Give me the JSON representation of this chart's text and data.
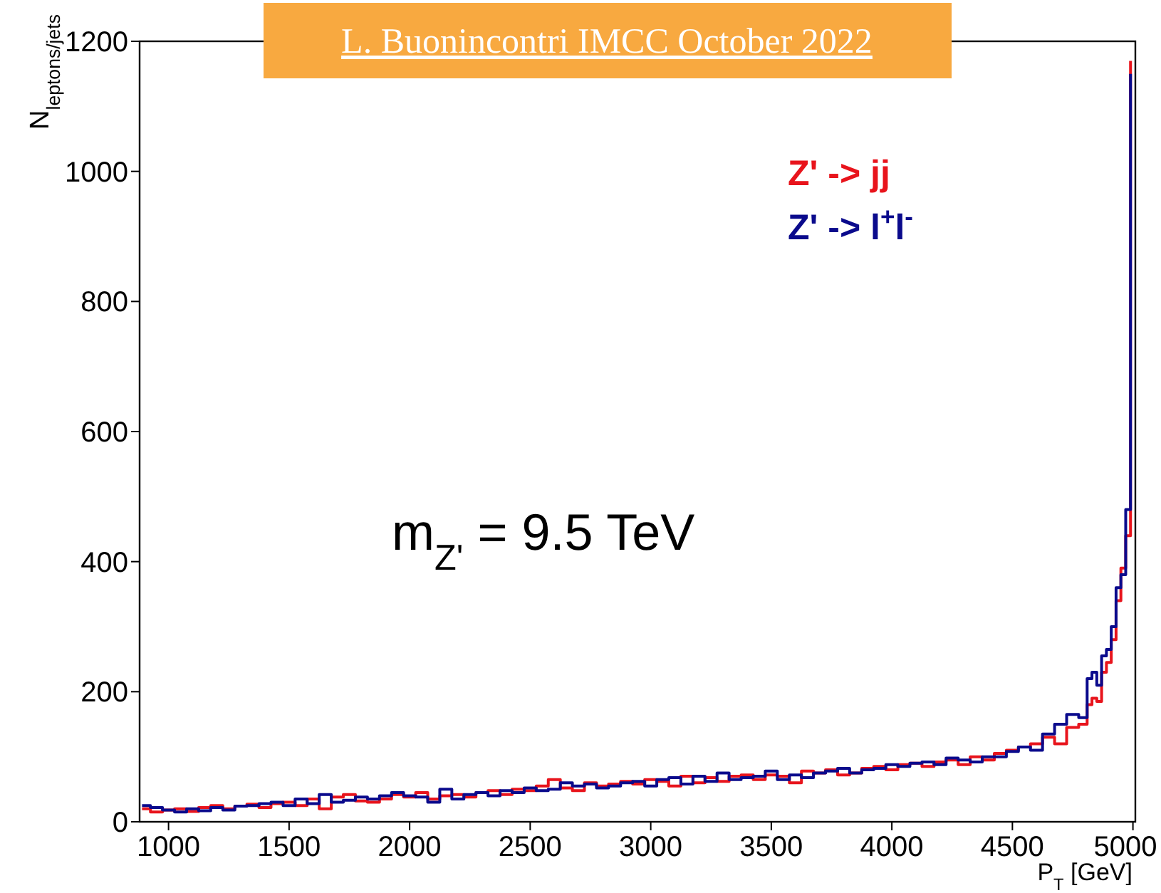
{
  "chart_data": {
    "type": "step",
    "title": "L. Buonincontri IMCC October 2022",
    "xlabel": "P$_{T}$ [GeV]",
    "ylabel": "N$_{leptons/jets}$",
    "annotations": [
      "m$_{Z'}$ = 9.5 TeV"
    ],
    "x": [
      890,
      925,
      975,
      1025,
      1075,
      1125,
      1175,
      1225,
      1275,
      1325,
      1375,
      1425,
      1475,
      1525,
      1575,
      1625,
      1675,
      1725,
      1775,
      1825,
      1875,
      1925,
      1975,
      2025,
      2075,
      2125,
      2175,
      2225,
      2275,
      2325,
      2375,
      2425,
      2475,
      2525,
      2575,
      2625,
      2675,
      2725,
      2775,
      2825,
      2875,
      2925,
      2975,
      3025,
      3075,
      3125,
      3175,
      3225,
      3275,
      3325,
      3375,
      3425,
      3475,
      3525,
      3575,
      3625,
      3675,
      3725,
      3775,
      3825,
      3875,
      3925,
      3975,
      4025,
      4075,
      4125,
      4175,
      4225,
      4275,
      4325,
      4375,
      4425,
      4475,
      4525,
      4575,
      4625,
      4675,
      4725,
      4775,
      4810,
      4830,
      4850,
      4870,
      4890,
      4910,
      4930,
      4950,
      4970,
      4990
    ],
    "series": [
      {
        "name": "Z' -> jj",
        "color": "#e8141c",
        "values": [
          20,
          15,
          18,
          20,
          16,
          22,
          25,
          20,
          24,
          27,
          22,
          28,
          30,
          25,
          35,
          20,
          38,
          42,
          32,
          30,
          35,
          42,
          38,
          45,
          35,
          40,
          42,
          38,
          45,
          48,
          42,
          50,
          48,
          55,
          65,
          52,
          48,
          60,
          55,
          58,
          62,
          58,
          65,
          62,
          55,
          70,
          60,
          68,
          62,
          70,
          72,
          65,
          72,
          70,
          60,
          78,
          75,
          80,
          72,
          75,
          82,
          85,
          80,
          88,
          90,
          85,
          92,
          95,
          88,
          100,
          95,
          105,
          110,
          115,
          120,
          130,
          120,
          145,
          150,
          180,
          190,
          185,
          230,
          245,
          280,
          340,
          390,
          440,
          1170
        ]
      },
      {
        "name": "Z' -> l$^{+}$l$^{-}$",
        "color": "#0a0a8c",
        "values": [
          25,
          22,
          18,
          15,
          20,
          17,
          22,
          18,
          24,
          25,
          28,
          30,
          25,
          35,
          28,
          42,
          30,
          33,
          38,
          35,
          40,
          45,
          40,
          38,
          30,
          50,
          35,
          42,
          45,
          40,
          48,
          45,
          52,
          48,
          50,
          60,
          55,
          58,
          52,
          55,
          60,
          62,
          55,
          65,
          68,
          58,
          70,
          62,
          75,
          65,
          68,
          70,
          78,
          65,
          72,
          68,
          75,
          78,
          82,
          75,
          80,
          82,
          88,
          85,
          90,
          92,
          88,
          98,
          95,
          92,
          100,
          100,
          108,
          115,
          110,
          135,
          150,
          165,
          160,
          220,
          230,
          210,
          255,
          265,
          300,
          360,
          380,
          480,
          1150
        ]
      }
    ],
    "xlim": [
      880,
      5010
    ],
    "ylim": [
      0,
      1200
    ],
    "xticks": [
      1000,
      1500,
      2000,
      2500,
      3000,
      3500,
      4000,
      4500,
      5000
    ],
    "yticks": [
      0,
      200,
      400,
      600,
      800,
      1000,
      1200
    ]
  }
}
